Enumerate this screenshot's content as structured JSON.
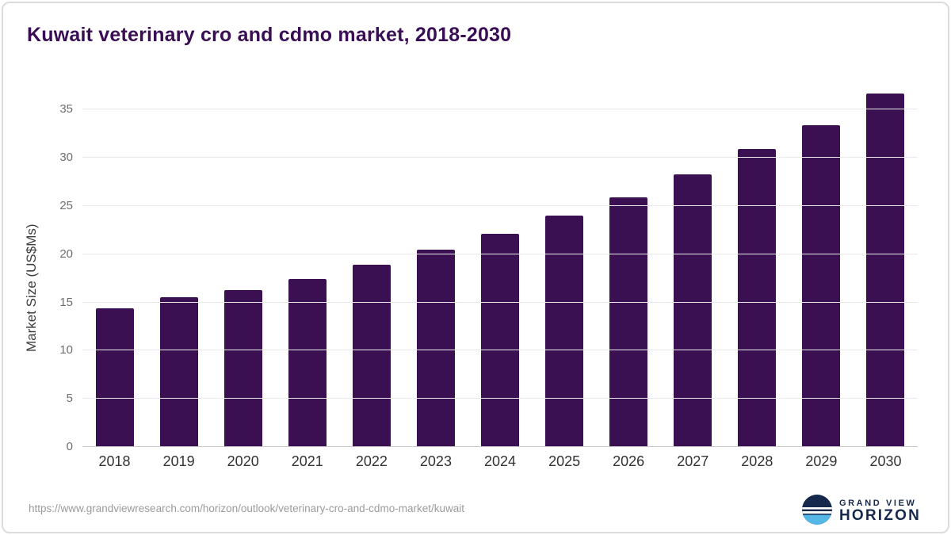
{
  "chart": {
    "title": "Kuwait veterinary cro and cdmo market, 2018-2030",
    "ylabel": "Market Size (US$Ms)"
  },
  "chart_data": {
    "type": "bar",
    "title": "Kuwait veterinary cro and cdmo market, 2018-2030",
    "categories": [
      "2018",
      "2019",
      "2020",
      "2021",
      "2022",
      "2023",
      "2024",
      "2025",
      "2026",
      "2027",
      "2028",
      "2029",
      "2030"
    ],
    "values": [
      14.4,
      15.5,
      16.3,
      17.4,
      18.9,
      20.5,
      22.1,
      24.0,
      25.9,
      28.3,
      30.9,
      33.4,
      36.7
    ],
    "xlabel": "",
    "ylabel": "Market Size (US$Ms)",
    "ylim": [
      0,
      37.4
    ],
    "yticks": [
      0,
      5,
      10,
      15,
      20,
      25,
      30,
      35
    ],
    "bar_color": "#3b1053",
    "grid": true,
    "legend": false
  },
  "footer": {
    "source_url": "https://www.grandviewresearch.com/horizon/outlook/veterinary-cro-and-cdmo-market/kuwait",
    "logo_top": "GRAND VIEW",
    "logo_bottom": "HORIZON"
  },
  "colors": {
    "title": "#3a0e55",
    "navy": "#16294d",
    "light_blue": "#56b7e6"
  }
}
